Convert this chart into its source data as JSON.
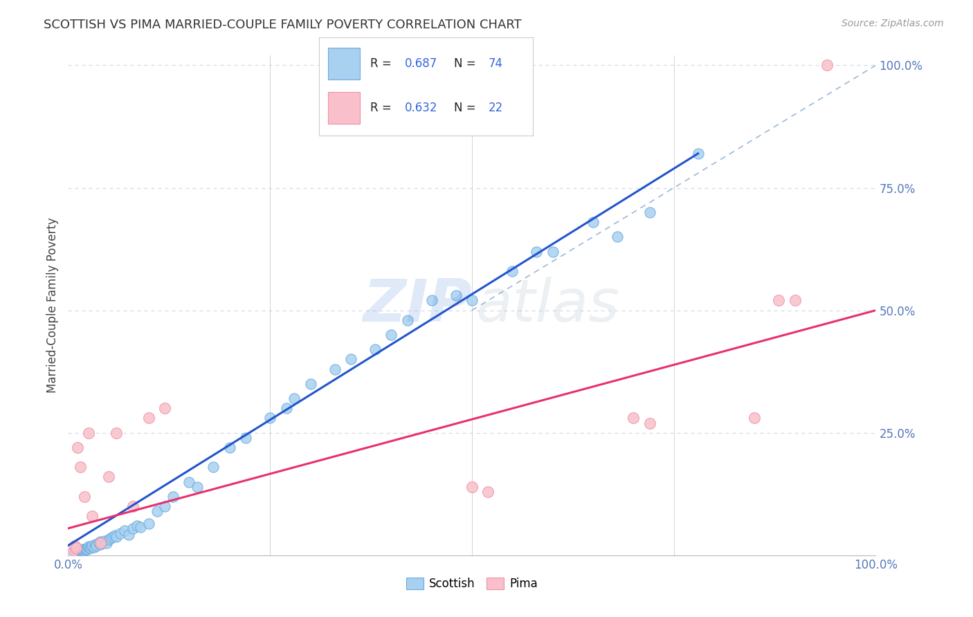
{
  "title": "SCOTTISH VS PIMA MARRIED-COUPLE FAMILY POVERTY CORRELATION CHART",
  "source_text": "Source: ZipAtlas.com",
  "ylabel": "Married-Couple Family Poverty",
  "xlim": [
    0,
    1
  ],
  "ylim": [
    0,
    1
  ],
  "scottish_color": "#a8d0f0",
  "scottish_edge_color": "#6aabdf",
  "pima_color": "#f9c0cb",
  "pima_edge_color": "#f090a8",
  "scottish_line_color": "#2255cc",
  "pima_line_color": "#e83070",
  "background_color": "#ffffff",
  "grid_color": "#d0d8e8",
  "watermark_zip_color": "#5588dd",
  "watermark_atlas_color": "#aabbcc",
  "legend_box_color": "#f5f5f5",
  "legend_border_color": "#cccccc",
  "tick_label_color": "#5577bb",
  "scottish_x": [
    0.005,
    0.007,
    0.008,
    0.009,
    0.01,
    0.01,
    0.012,
    0.013,
    0.014,
    0.015,
    0.015,
    0.016,
    0.017,
    0.018,
    0.018,
    0.02,
    0.02,
    0.022,
    0.023,
    0.024,
    0.025,
    0.025,
    0.027,
    0.028,
    0.03,
    0.03,
    0.032,
    0.034,
    0.035,
    0.038,
    0.04,
    0.04,
    0.042,
    0.045,
    0.048,
    0.05,
    0.053,
    0.055,
    0.058,
    0.06,
    0.065,
    0.07,
    0.075,
    0.08,
    0.085,
    0.09,
    0.1,
    0.11,
    0.12,
    0.13,
    0.15,
    0.16,
    0.18,
    0.2,
    0.22,
    0.25,
    0.27,
    0.28,
    0.3,
    0.33,
    0.35,
    0.38,
    0.4,
    0.42,
    0.45,
    0.48,
    0.5,
    0.55,
    0.58,
    0.6,
    0.65,
    0.68,
    0.72,
    0.78
  ],
  "scottish_y": [
    0.003,
    0.005,
    0.004,
    0.006,
    0.005,
    0.008,
    0.006,
    0.007,
    0.008,
    0.007,
    0.01,
    0.008,
    0.009,
    0.01,
    0.012,
    0.01,
    0.013,
    0.012,
    0.014,
    0.013,
    0.015,
    0.018,
    0.016,
    0.015,
    0.018,
    0.02,
    0.016,
    0.022,
    0.02,
    0.025,
    0.022,
    0.028,
    0.026,
    0.03,
    0.025,
    0.032,
    0.035,
    0.038,
    0.04,
    0.038,
    0.045,
    0.05,
    0.042,
    0.055,
    0.06,
    0.058,
    0.065,
    0.09,
    0.1,
    0.12,
    0.15,
    0.14,
    0.18,
    0.22,
    0.24,
    0.28,
    0.3,
    0.32,
    0.35,
    0.38,
    0.4,
    0.42,
    0.45,
    0.48,
    0.52,
    0.53,
    0.52,
    0.58,
    0.62,
    0.62,
    0.68,
    0.65,
    0.7,
    0.82
  ],
  "pima_x": [
    0.005,
    0.008,
    0.01,
    0.012,
    0.015,
    0.02,
    0.025,
    0.03,
    0.04,
    0.05,
    0.06,
    0.08,
    0.1,
    0.12,
    0.5,
    0.52,
    0.7,
    0.72,
    0.85,
    0.88,
    0.9,
    0.94
  ],
  "pima_y": [
    0.005,
    0.02,
    0.015,
    0.22,
    0.18,
    0.12,
    0.25,
    0.08,
    0.025,
    0.16,
    0.25,
    0.1,
    0.28,
    0.3,
    0.14,
    0.13,
    0.28,
    0.27,
    0.28,
    0.52,
    0.52,
    1.0
  ],
  "scottish_trend_x0": 0.0,
  "scottish_trend_x1": 0.78,
  "scottish_trend_y0": 0.02,
  "scottish_trend_y1": 0.82,
  "pima_trend_x0": 0.0,
  "pima_trend_x1": 1.0,
  "pima_trend_y0": 0.055,
  "pima_trend_y1": 0.5,
  "diag_color": "#aaaaaa"
}
